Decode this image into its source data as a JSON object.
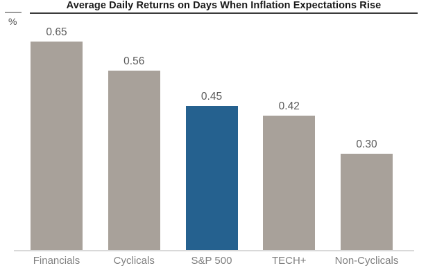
{
  "header": {
    "title": "Average Daily Returns on Days When Inflation Expectations Rise",
    "unit_label": "%"
  },
  "colors": {
    "bar_default": "#a8a19a",
    "bar_highlight": "#25618f",
    "title_text": "#1a1a1a",
    "title_underline": "#3b3b3b",
    "axis_line": "#d9d9d9",
    "value_label": "#595959",
    "category_label": "#7f7f7f"
  },
  "chart_data": {
    "type": "bar",
    "title": "Average Daily Returns on Days When Inflation Expectations Rise",
    "xlabel": "",
    "ylabel": "%",
    "categories": [
      "Financials",
      "Cyclicals",
      "S&P 500",
      "TECH+",
      "Non-Cyclicals"
    ],
    "values": [
      0.65,
      0.56,
      0.45,
      0.42,
      0.3
    ],
    "value_labels": [
      "0.65",
      "0.56",
      "0.45",
      "0.42",
      "0.30"
    ],
    "highlighted_category": "S&P 500",
    "highlight_index": 2,
    "bar_colors": [
      "#a8a19a",
      "#a8a19a",
      "#25618f",
      "#a8a19a",
      "#a8a19a"
    ],
    "ylim": [
      0,
      0.74
    ],
    "grid": false,
    "legend": "none",
    "data_labels": true
  }
}
